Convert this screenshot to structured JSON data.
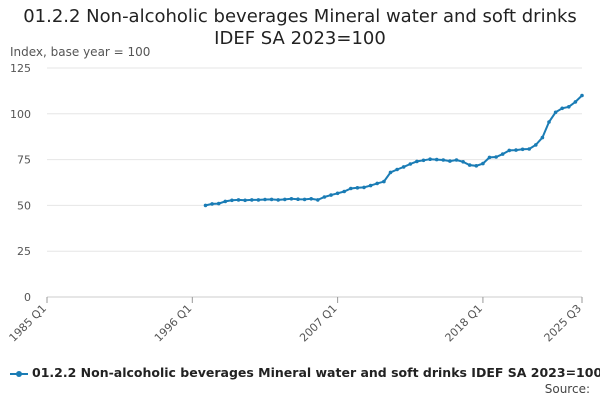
{
  "chart_data": {
    "type": "line",
    "title": "01.2.2 Non-alcoholic beverages Mineral water and soft drinks IDEF SA 2023=100",
    "ylabel": "Index, base year = 100",
    "xlabel": "",
    "ylim": [
      0,
      125
    ],
    "yticks": [
      0,
      25,
      50,
      75,
      100,
      125
    ],
    "x_axis": {
      "type": "quarterly",
      "start": "1985 Q1",
      "end": "2025 Q3"
    },
    "x_ticks": [
      "1985 Q1",
      "1996 Q1",
      "2007 Q1",
      "2018 Q1",
      "2025 Q3"
    ],
    "grid": "horizontal",
    "legend_position": "bottom",
    "series": [
      {
        "name": "01.2.2 Non-alcoholic beverages Mineral water and soft drinks IDEF SA 2023=100",
        "color": "#1a7cb5",
        "points": [
          [
            "1997 Q1",
            50.0
          ],
          [
            "1997 Q3",
            50.8
          ],
          [
            "1998 Q1",
            51.0
          ],
          [
            "1998 Q3",
            52.2
          ],
          [
            "1999 Q1",
            52.8
          ],
          [
            "1999 Q3",
            53.0
          ],
          [
            "2000 Q1",
            52.8
          ],
          [
            "2000 Q3",
            53.0
          ],
          [
            "2001 Q1",
            53.0
          ],
          [
            "2001 Q3",
            53.2
          ],
          [
            "2002 Q1",
            53.3
          ],
          [
            "2002 Q3",
            53.0
          ],
          [
            "2003 Q1",
            53.3
          ],
          [
            "2003 Q3",
            53.6
          ],
          [
            "2004 Q1",
            53.4
          ],
          [
            "2004 Q3",
            53.3
          ],
          [
            "2005 Q1",
            53.6
          ],
          [
            "2005 Q3",
            53.0
          ],
          [
            "2006 Q1",
            54.6
          ],
          [
            "2006 Q3",
            55.6
          ],
          [
            "2007 Q1",
            56.6
          ],
          [
            "2007 Q3",
            57.6
          ],
          [
            "2008 Q1",
            59.2
          ],
          [
            "2008 Q3",
            59.6
          ],
          [
            "2009 Q1",
            59.8
          ],
          [
            "2009 Q3",
            60.8
          ],
          [
            "2010 Q1",
            62.0
          ],
          [
            "2010 Q3",
            63.0
          ],
          [
            "2011 Q1",
            68.0
          ],
          [
            "2011 Q3",
            69.6
          ],
          [
            "2012 Q1",
            71.0
          ],
          [
            "2012 Q3",
            72.6
          ],
          [
            "2013 Q1",
            74.0
          ],
          [
            "2013 Q3",
            74.6
          ],
          [
            "2014 Q1",
            75.2
          ],
          [
            "2014 Q3",
            75.0
          ],
          [
            "2015 Q1",
            74.8
          ],
          [
            "2015 Q3",
            74.2
          ],
          [
            "2016 Q1",
            74.8
          ],
          [
            "2016 Q3",
            73.8
          ],
          [
            "2017 Q1",
            72.0
          ],
          [
            "2017 Q3",
            71.6
          ],
          [
            "2018 Q1",
            72.8
          ],
          [
            "2018 Q3",
            76.2
          ],
          [
            "2019 Q1",
            76.4
          ],
          [
            "2019 Q3",
            78.0
          ],
          [
            "2020 Q1",
            80.0
          ],
          [
            "2020 Q3",
            80.2
          ],
          [
            "2021 Q1",
            80.6
          ],
          [
            "2021 Q3",
            80.8
          ],
          [
            "2022 Q1",
            83.0
          ],
          [
            "2022 Q3",
            87.0
          ],
          [
            "2023 Q1",
            95.5
          ],
          [
            "2023 Q3",
            100.8
          ],
          [
            "2024 Q1",
            103.0
          ],
          [
            "2024 Q3",
            103.8
          ],
          [
            "2025 Q1",
            106.5
          ],
          [
            "2025 Q3",
            110.0
          ]
        ]
      }
    ]
  },
  "source_label": "Source:"
}
